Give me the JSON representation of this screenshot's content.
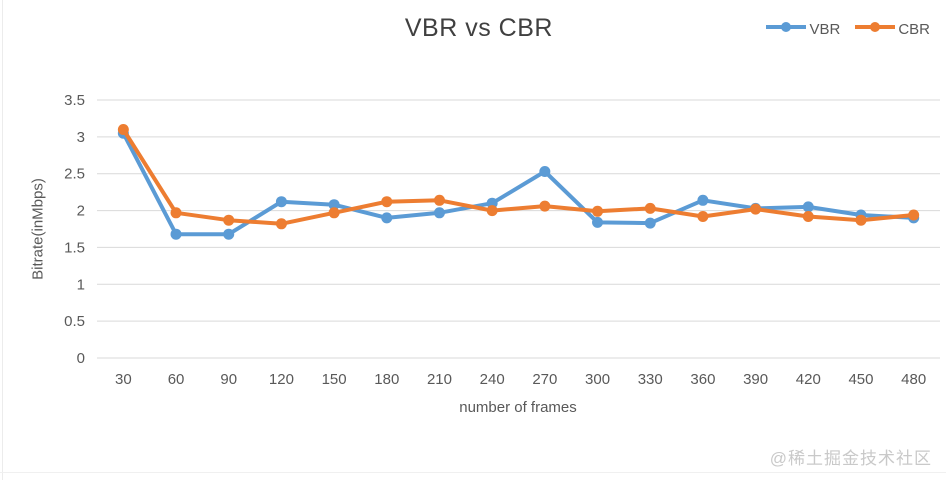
{
  "page": {
    "watermark": "@稀土掘金技术社区"
  },
  "chart_data": {
    "type": "line",
    "title": "VBR vs CBR",
    "xlabel": "number of frames",
    "ylabel": "Bitrate(inMbps)",
    "categories": [
      30,
      60,
      90,
      120,
      150,
      180,
      210,
      240,
      270,
      300,
      330,
      360,
      390,
      420,
      450,
      480
    ],
    "series": [
      {
        "name": "VBR",
        "color": "#5B9BD5",
        "values": [
          3.05,
          1.68,
          1.68,
          2.12,
          2.08,
          1.9,
          1.97,
          2.1,
          2.53,
          1.84,
          1.83,
          2.14,
          2.03,
          2.05,
          1.94,
          1.9
        ]
      },
      {
        "name": "CBR",
        "color": "#ED7D31",
        "values": [
          3.1,
          1.97,
          1.87,
          1.82,
          1.97,
          2.12,
          2.14,
          2.0,
          2.06,
          1.99,
          2.03,
          1.92,
          2.02,
          1.92,
          1.87,
          1.94
        ]
      }
    ],
    "ylim": [
      0,
      3.5
    ],
    "ytick_step": 0.5,
    "grid": true,
    "legend_position": "top-right",
    "colors": {
      "gridline": "#d9d9d9",
      "tick_text": "#595959",
      "title_text": "#404040"
    }
  }
}
